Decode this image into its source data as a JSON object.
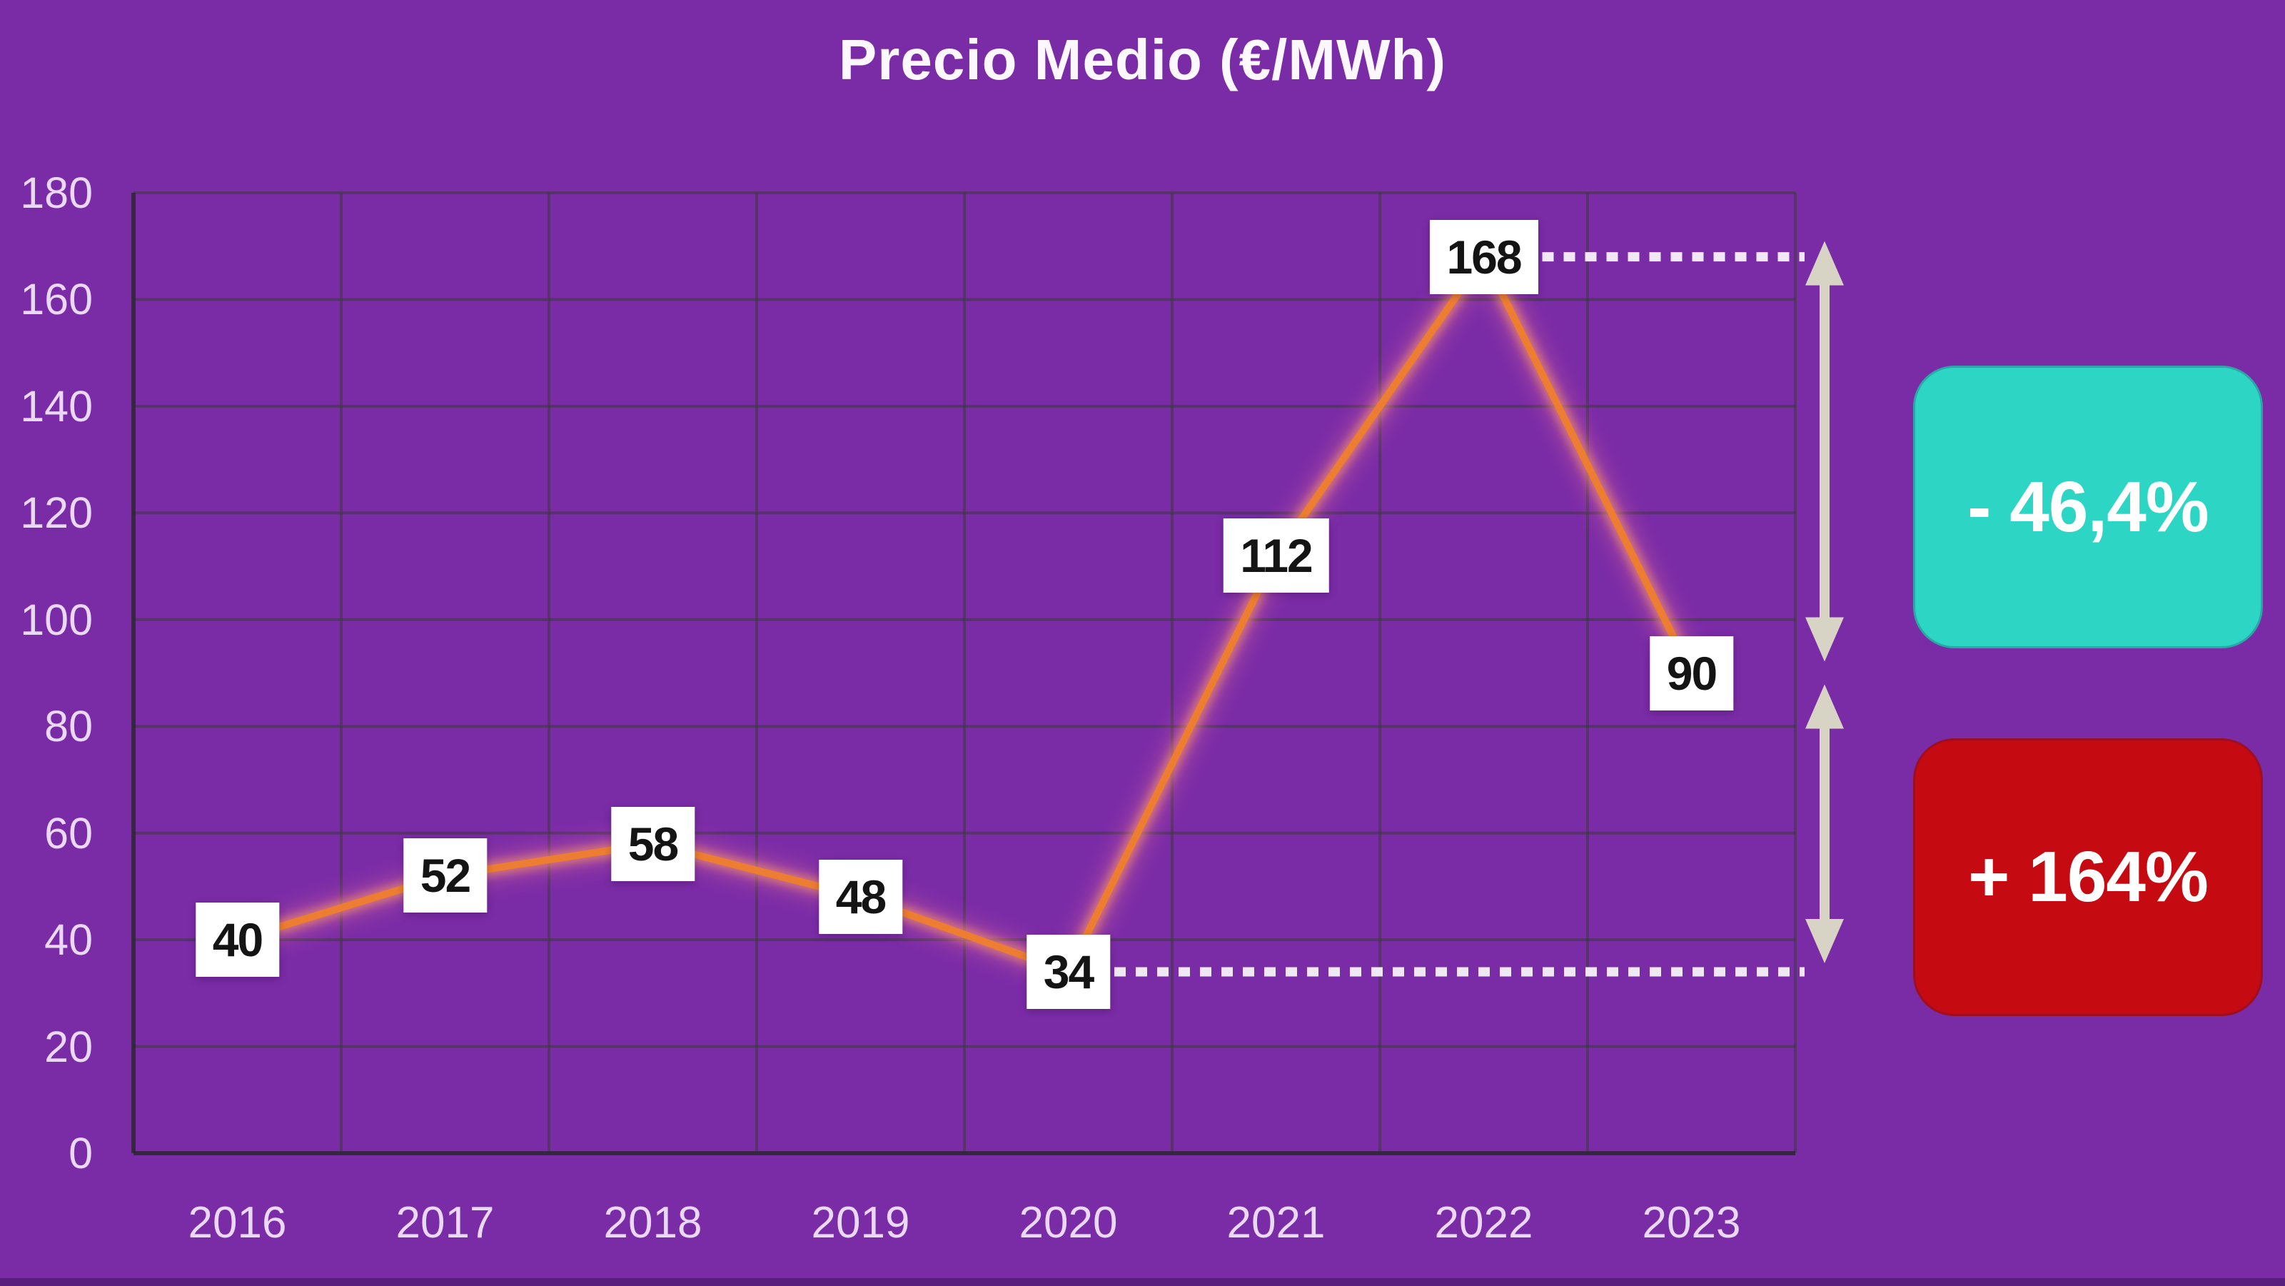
{
  "page": {
    "background": "#7a2ba6"
  },
  "chart_data": {
    "type": "line",
    "title": "Precio Medio (€/MWh)",
    "categories": [
      "2016",
      "2017",
      "2018",
      "2019",
      "2020",
      "2021",
      "2022",
      "2023"
    ],
    "values": [
      40,
      52,
      58,
      48,
      34,
      112,
      168,
      90
    ],
    "point_labels": [
      "40",
      "52",
      "58",
      "48",
      "34",
      "112",
      "168",
      "90"
    ],
    "ylim": [
      0,
      180
    ],
    "yticks": [
      0,
      20,
      40,
      60,
      80,
      100,
      120,
      140,
      160,
      180
    ],
    "grid": true,
    "legend": "none",
    "colors": {
      "background": "#7a2ba6",
      "line": "#ed7d31",
      "glow_outer": "#ff7d9e",
      "glow_inner": "#ff9d5c",
      "grid": "rgba(62,56,66,0.60)",
      "axis": "rgba(38,34,44,0.70)",
      "tick_text": "#e9d9f6",
      "title_text": "#fdf8ff",
      "point_label_bg": "#ffffff",
      "point_label_text": "#141414",
      "dotted": "#f1e8f6",
      "arrow": "#d7d4c5"
    },
    "annotations": {
      "dotted_lines": [
        {
          "year": "2022",
          "value": 168
        },
        {
          "year": "2020",
          "value": 34
        }
      ],
      "arrows": [
        {
          "from_value": 168,
          "to_value": 90
        },
        {
          "from_value": 90,
          "to_value": 34
        }
      ],
      "badges": [
        {
          "label": "- 46,4%",
          "bg": "#2cd5c4",
          "text_color": "#ffffff"
        },
        {
          "label": "+ 164%",
          "bg": "#c50a11",
          "text_color": "#ffffff"
        }
      ]
    }
  }
}
